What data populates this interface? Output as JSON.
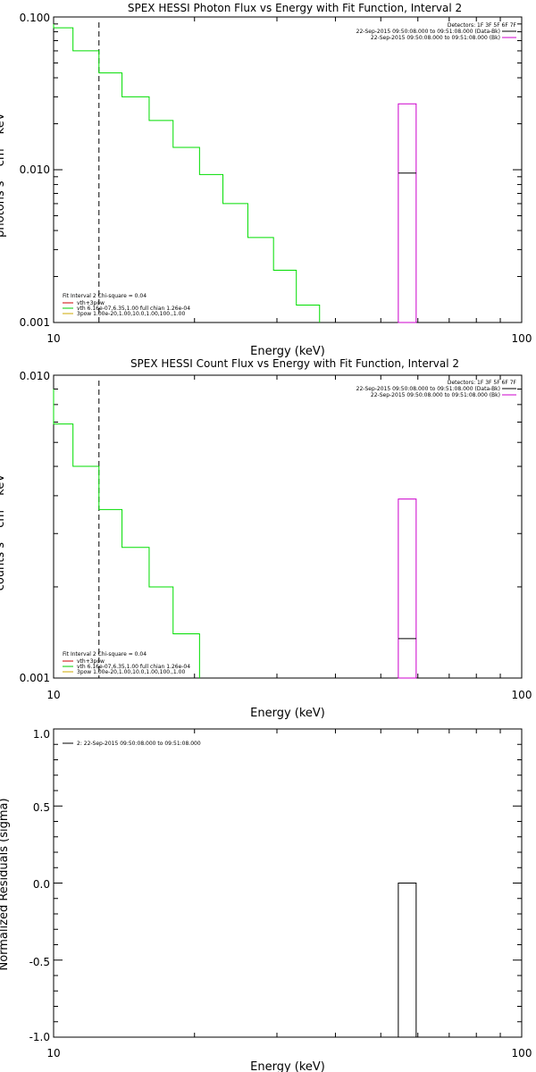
{
  "chart_data": [
    {
      "type": "line",
      "title": "SPEX HESSI Photon Flux vs Energy with Fit Function, Interval 2",
      "xlabel": "Energy (keV)",
      "ylabel": "photons s⁻¹ cm⁻² keV⁻¹",
      "xscale": "log",
      "yscale": "log",
      "xlim": [
        10,
        100
      ],
      "ylim": [
        0.001,
        0.1
      ],
      "x_ticks": [
        "10",
        "100"
      ],
      "y_ticks": [
        "0.001",
        "0.010",
        "0.100"
      ],
      "detectors_label": "Detectors: 1F 3F 5F 6F 7F",
      "time_labels": [
        {
          "text": "22-Sep-2015 09:50:08.000 to 09:51:08.000 (Data-Bk)",
          "color": "#000000"
        },
        {
          "text": "22-Sep-2015 09:50:08.000 to 09:51:08.000 (Bk)",
          "color": "#cc00cc"
        }
      ],
      "fit_info": "Fit Interval 2   Chi-square = 0.04",
      "legend": [
        {
          "text": "vth+3pow",
          "color": "#cc0000"
        },
        {
          "text": "vth 6.16e-07,6.35,1.00  full chian 1.26e-04",
          "color": "#00cc00"
        },
        {
          "text": "3pow 1.00e-20,1.00,10.0,1.00,100.,1.00",
          "color": "#ccaa00"
        }
      ],
      "marker_x": 12.5,
      "series": [
        {
          "name": "vth",
          "color": "#00dd00",
          "step_edges": [
            10,
            11,
            12.5,
            14,
            16,
            18,
            20.5,
            23,
            26,
            29.5,
            33,
            37
          ],
          "values": [
            0.085,
            0.06,
            0.043,
            0.03,
            0.021,
            0.014,
            0.0093,
            0.006,
            0.0036,
            0.0022,
            0.0013
          ]
        }
      ],
      "data_box": {
        "x0": 54.5,
        "x1": 59.5,
        "y_low": 0.001,
        "y_high": 0.027,
        "y_data": 0.0095
      },
      "colors": {
        "fit": "#00dd00",
        "background": "#cc00cc",
        "data": "#000000"
      }
    },
    {
      "type": "line",
      "title": "SPEX HESSI Count Flux vs Energy with Fit Function, Interval 2",
      "xlabel": "Energy (keV)",
      "ylabel": "counts s⁻¹ cm⁻² keV⁻¹",
      "xscale": "log",
      "yscale": "log",
      "xlim": [
        10,
        100
      ],
      "ylim": [
        0.001,
        0.01
      ],
      "x_ticks": [
        "10",
        "100"
      ],
      "y_ticks": [
        "0.001",
        "0.010"
      ],
      "detectors_label": "Detectors: 1F 3F 5F 6F 7F",
      "time_labels": [
        {
          "text": "22-Sep-2015 09:50:08.000 to 09:51:08.000 (Data-Bk)",
          "color": "#000000"
        },
        {
          "text": "22-Sep-2015 09:50:08.000 to 09:51:08.000 (Bk)",
          "color": "#cc00cc"
        }
      ],
      "fit_info": "Fit Interval 2   Chi-square = 0.04",
      "legend": [
        {
          "text": "vth+3pow",
          "color": "#cc0000"
        },
        {
          "text": "vth 6.16e-07,6.35,1.00  full chian 1.26e-04",
          "color": "#00cc00"
        },
        {
          "text": "3pow 1.00e-20,1.00,10.0,1.00,100.,1.00",
          "color": "#ccaa00"
        }
      ],
      "marker_x": 12.5,
      "series": [
        {
          "name": "vth",
          "color": "#00dd00",
          "step_edges": [
            10,
            11,
            12.5,
            14,
            16,
            18,
            20.5
          ],
          "values": [
            0.0069,
            0.005,
            0.0036,
            0.0027,
            0.002,
            0.0014
          ]
        }
      ],
      "data_box": {
        "x0": 54.5,
        "x1": 59.5,
        "y_low": 0.001,
        "y_high": 0.0039,
        "y_data": 0.00135
      },
      "colors": {
        "fit": "#00dd00",
        "background": "#cc00cc",
        "data": "#000000"
      }
    },
    {
      "type": "bar",
      "title": "",
      "xlabel": "Energy (keV)",
      "ylabel": "Normalized Residuals (sigma)",
      "xscale": "log",
      "xlim": [
        10,
        100
      ],
      "ylim": [
        -1.0,
        1.0
      ],
      "x_ticks": [
        "10",
        "100"
      ],
      "y_ticks": [
        "-1.0",
        "-0.5",
        "0.0",
        "0.5",
        "1.0"
      ],
      "legend": [
        {
          "text": "2: 22-Sep-2015 09:50:08.000 to 09:51:08.000",
          "color": "#000000"
        }
      ],
      "residual_box": {
        "x0": 54.5,
        "x1": 59.5,
        "y_low": -1.0,
        "y_high": 0.0
      }
    }
  ]
}
